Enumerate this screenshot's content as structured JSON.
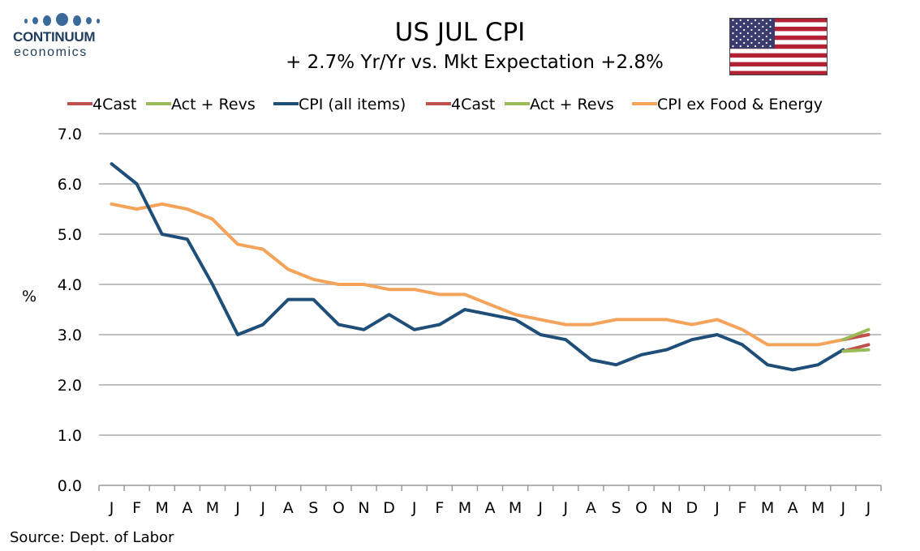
{
  "header": {
    "title": "US JUL CPI",
    "subtitle": "+ 2.7% Yr/Yr  vs. Mkt Expectation +2.8%",
    "logo_name": "CONTINUUM",
    "logo_sub": "economics"
  },
  "footer": {
    "source": "Source: Dept. of Labor"
  },
  "colors": {
    "cpi": "#1f4e79",
    "core": "#f4a35a",
    "forecast": "#c0504d",
    "actual": "#9bbb59",
    "grid": "#bfbfbf"
  },
  "chart_data": {
    "type": "line",
    "title": "US JUL CPI",
    "subtitle": "+ 2.7% Yr/Yr  vs. Mkt Expectation +2.8%",
    "xlabel": "",
    "ylabel": "%",
    "ylim": [
      0,
      7
    ],
    "yticks": [
      "0.0",
      "1.0",
      "2.0",
      "3.0",
      "4.0",
      "5.0",
      "6.0",
      "7.0"
    ],
    "categories": [
      "J",
      "F",
      "M",
      "A",
      "M",
      "J",
      "J",
      "A",
      "S",
      "O",
      "N",
      "D",
      "J",
      "F",
      "M",
      "A",
      "M",
      "J",
      "J",
      "A",
      "S",
      "O",
      "N",
      "D",
      "J",
      "F",
      "M",
      "A",
      "M",
      "J",
      "J"
    ],
    "grid": "horizontal",
    "legend": [
      "4Cast",
      "Act + Revs",
      "CPI (all items)",
      "4Cast",
      "Act + Revs",
      "CPI ex Food & Energy"
    ],
    "legend_position": "top",
    "series": [
      {
        "name": "4Cast",
        "color": "#c0504d",
        "values": [
          null,
          null,
          null,
          null,
          null,
          null,
          null,
          null,
          null,
          null,
          null,
          null,
          null,
          null,
          null,
          null,
          null,
          null,
          null,
          null,
          null,
          null,
          null,
          null,
          null,
          null,
          null,
          null,
          null,
          2.67,
          2.8
        ]
      },
      {
        "name": "Act + Revs",
        "color": "#9bbb59",
        "values": [
          null,
          null,
          null,
          null,
          null,
          null,
          null,
          null,
          null,
          null,
          null,
          null,
          null,
          null,
          null,
          null,
          null,
          null,
          null,
          null,
          null,
          null,
          null,
          null,
          null,
          null,
          null,
          null,
          null,
          2.67,
          2.7
        ]
      },
      {
        "name": "CPI (all items)",
        "color": "#1f4e79",
        "values": [
          6.4,
          6.0,
          5.0,
          4.9,
          4.0,
          3.0,
          3.2,
          3.7,
          3.7,
          3.2,
          3.1,
          3.4,
          3.1,
          3.2,
          3.5,
          3.4,
          3.3,
          3.0,
          2.9,
          2.5,
          2.4,
          2.6,
          2.7,
          2.9,
          3.0,
          2.8,
          2.4,
          2.3,
          2.4,
          2.7,
          null
        ]
      },
      {
        "name": "4Cast",
        "color": "#c0504d",
        "values": [
          null,
          null,
          null,
          null,
          null,
          null,
          null,
          null,
          null,
          null,
          null,
          null,
          null,
          null,
          null,
          null,
          null,
          null,
          null,
          null,
          null,
          null,
          null,
          null,
          null,
          null,
          null,
          null,
          null,
          2.9,
          3.0
        ]
      },
      {
        "name": "Act + Revs",
        "color": "#9bbb59",
        "values": [
          null,
          null,
          null,
          null,
          null,
          null,
          null,
          null,
          null,
          null,
          null,
          null,
          null,
          null,
          null,
          null,
          null,
          null,
          null,
          null,
          null,
          null,
          null,
          null,
          null,
          null,
          null,
          null,
          null,
          2.9,
          3.1
        ]
      },
      {
        "name": "CPI ex Food & Energy",
        "color": "#f4a35a",
        "values": [
          5.6,
          5.5,
          5.6,
          5.5,
          5.3,
          4.8,
          4.7,
          4.3,
          4.1,
          4.0,
          4.0,
          3.9,
          3.9,
          3.8,
          3.8,
          3.6,
          3.4,
          3.3,
          3.2,
          3.2,
          3.3,
          3.3,
          3.3,
          3.2,
          3.3,
          3.1,
          2.8,
          2.8,
          2.8,
          2.9,
          null
        ]
      }
    ]
  }
}
